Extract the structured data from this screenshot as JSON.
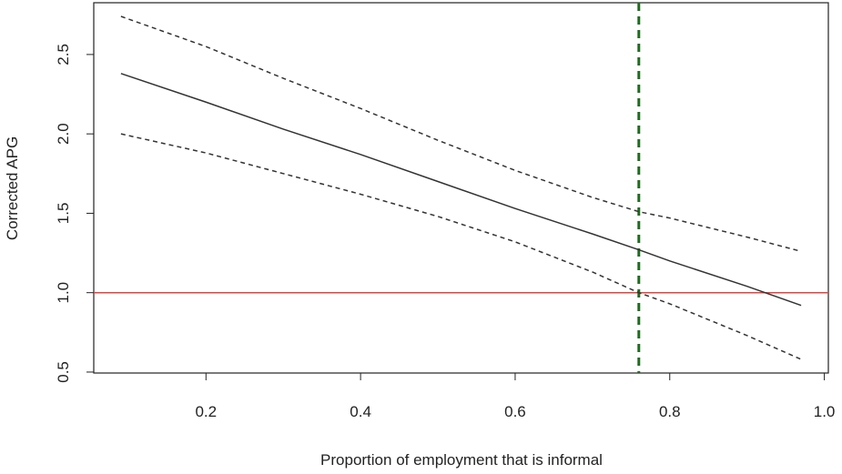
{
  "chart_data": {
    "type": "line",
    "xlabel": "Proportion of employment that is informal",
    "ylabel": "Corrected APG",
    "x": [
      0.09,
      0.2,
      0.3,
      0.4,
      0.5,
      0.6,
      0.7,
      0.76,
      0.8,
      0.9,
      0.97
    ],
    "series": [
      {
        "color": "#333333",
        "dash": "none",
        "values": [
          2.38,
          2.2,
          2.03,
          1.87,
          1.7,
          1.53,
          1.37,
          1.27,
          1.2,
          1.04,
          0.92
        ]
      },
      {
        "color": "#333333",
        "dash": "5 4",
        "values": [
          2.74,
          2.55,
          2.35,
          2.16,
          1.96,
          1.77,
          1.6,
          1.51,
          1.47,
          1.35,
          1.26
        ]
      },
      {
        "color": "#333333",
        "dash": "5 4",
        "values": [
          2.0,
          1.88,
          1.75,
          1.62,
          1.48,
          1.32,
          1.13,
          1.0,
          0.93,
          0.73,
          0.58
        ]
      }
    ],
    "hline": {
      "value": 1,
      "color": "#e8413c"
    },
    "vline": {
      "value": 0.76,
      "color": "#1f6b1f"
    },
    "xlim": [
      0.0548,
      1.0052
    ],
    "ylim": [
      0.494,
      2.826
    ],
    "xticks": [
      0.2,
      0.4,
      0.6,
      0.8,
      {
        "value": 1,
        "label": "1.0"
      }
    ],
    "yticks": [
      0.5,
      {
        "value": 1,
        "label": "1.0"
      },
      1.5,
      {
        "value": 2,
        "label": "2.0"
      },
      2.5
    ]
  }
}
